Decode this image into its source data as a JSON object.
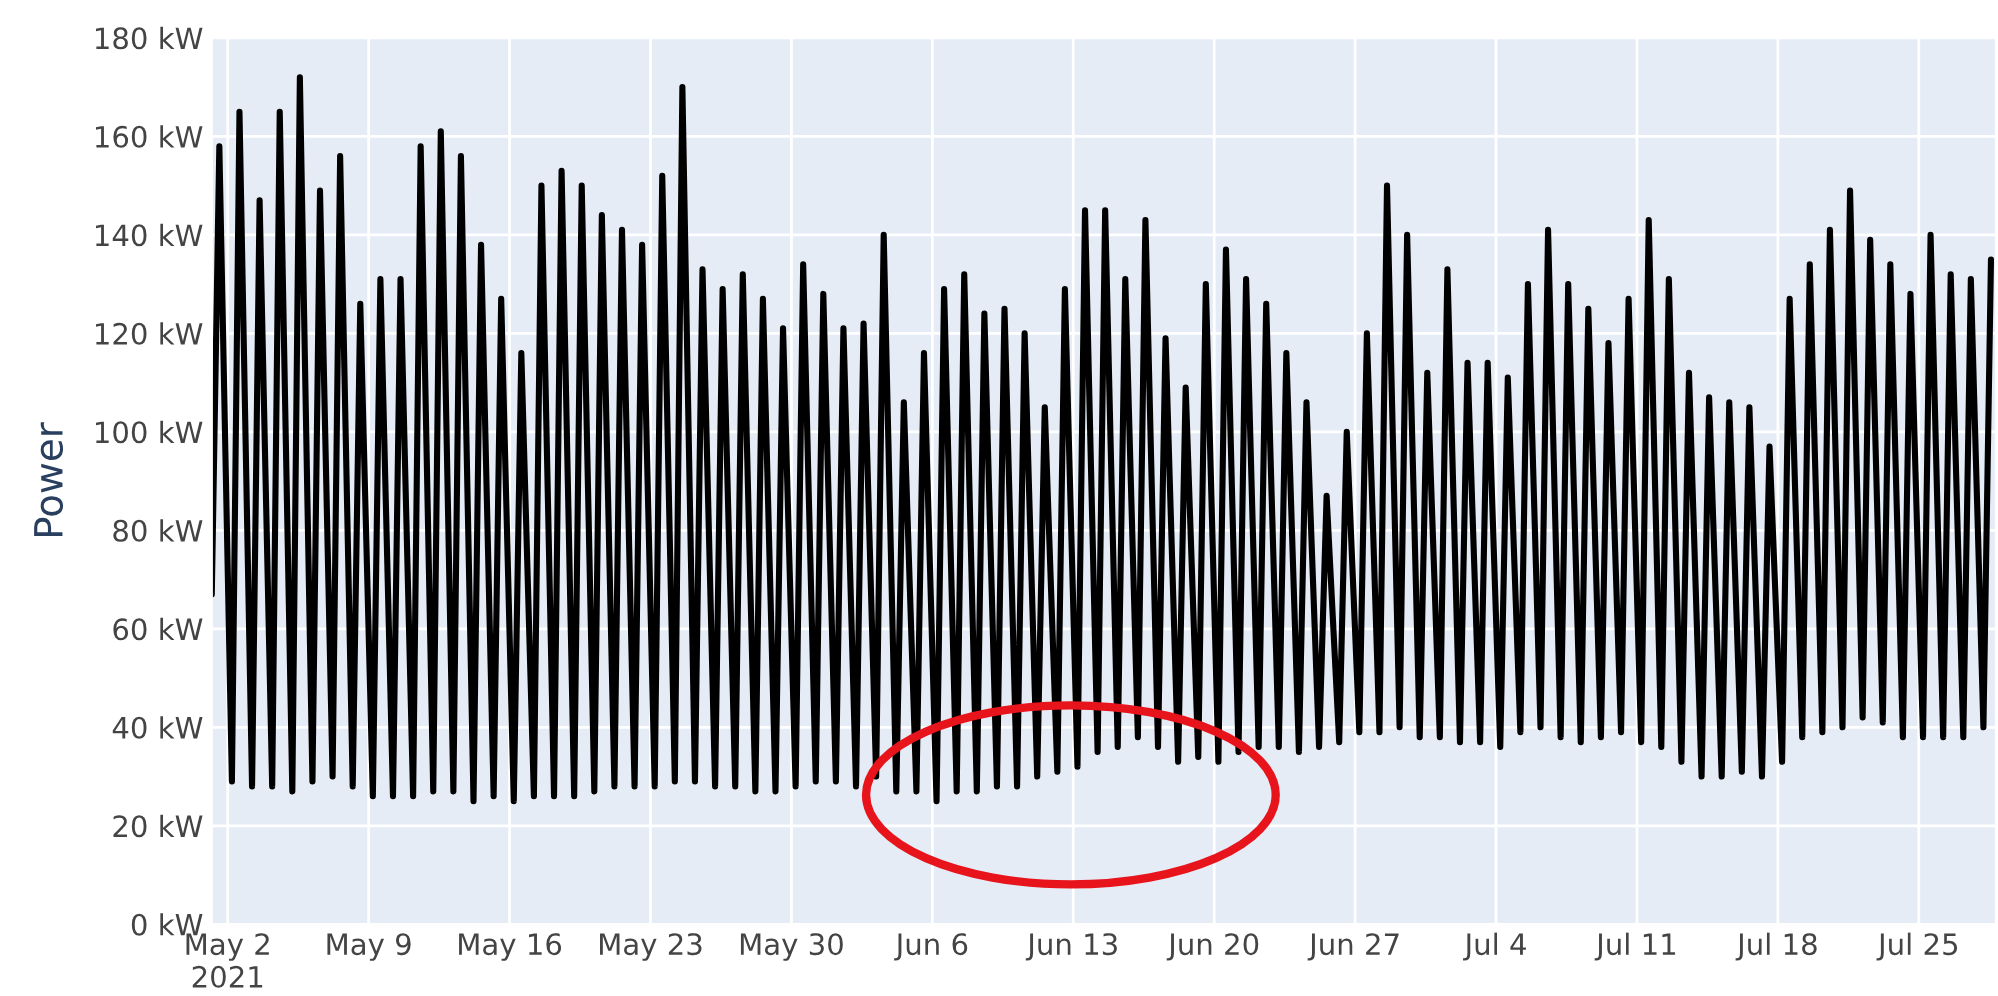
{
  "chart_data": {
    "type": "line",
    "ylabel": "Power",
    "x": [
      "2021-05-01T05:00",
      "2021-05-01T14:00",
      "2021-05-02T05:00",
      "2021-05-02T14:00",
      "2021-05-03T05:00",
      "2021-05-03T14:00",
      "2021-05-04T05:00",
      "2021-05-04T14:00",
      "2021-05-05T05:00",
      "2021-05-05T14:00",
      "2021-05-06T05:00",
      "2021-05-06T14:00",
      "2021-05-07T05:00",
      "2021-05-07T14:00",
      "2021-05-08T05:00",
      "2021-05-08T14:00",
      "2021-05-09T05:00",
      "2021-05-09T14:00",
      "2021-05-10T05:00",
      "2021-05-10T14:00",
      "2021-05-11T05:00",
      "2021-05-11T14:00",
      "2021-05-12T05:00",
      "2021-05-12T14:00",
      "2021-05-13T05:00",
      "2021-05-13T14:00",
      "2021-05-14T05:00",
      "2021-05-14T14:00",
      "2021-05-15T05:00",
      "2021-05-15T14:00",
      "2021-05-16T05:00",
      "2021-05-16T14:00",
      "2021-05-17T05:00",
      "2021-05-17T14:00",
      "2021-05-18T05:00",
      "2021-05-18T14:00",
      "2021-05-19T05:00",
      "2021-05-19T14:00",
      "2021-05-20T05:00",
      "2021-05-20T14:00",
      "2021-05-21T05:00",
      "2021-05-21T14:00",
      "2021-05-22T05:00",
      "2021-05-22T14:00",
      "2021-05-23T05:00",
      "2021-05-23T14:00",
      "2021-05-24T05:00",
      "2021-05-24T14:00",
      "2021-05-25T05:00",
      "2021-05-25T14:00",
      "2021-05-26T05:00",
      "2021-05-26T14:00",
      "2021-05-27T05:00",
      "2021-05-27T14:00",
      "2021-05-28T05:00",
      "2021-05-28T14:00",
      "2021-05-29T05:00",
      "2021-05-29T14:00",
      "2021-05-30T05:00",
      "2021-05-30T14:00",
      "2021-05-31T05:00",
      "2021-05-31T14:00",
      "2021-06-01T05:00",
      "2021-06-01T14:00",
      "2021-06-02T05:00",
      "2021-06-02T14:00",
      "2021-06-03T05:00",
      "2021-06-03T14:00",
      "2021-06-04T05:00",
      "2021-06-04T14:00",
      "2021-06-05T05:00",
      "2021-06-05T14:00",
      "2021-06-06T05:00",
      "2021-06-06T14:00",
      "2021-06-07T05:00",
      "2021-06-07T14:00",
      "2021-06-08T05:00",
      "2021-06-08T14:00",
      "2021-06-09T05:00",
      "2021-06-09T14:00",
      "2021-06-10T05:00",
      "2021-06-10T14:00",
      "2021-06-11T05:00",
      "2021-06-11T14:00",
      "2021-06-12T05:00",
      "2021-06-12T14:00",
      "2021-06-13T05:00",
      "2021-06-13T14:00",
      "2021-06-14T05:00",
      "2021-06-14T14:00",
      "2021-06-15T05:00",
      "2021-06-15T14:00",
      "2021-06-16T05:00",
      "2021-06-16T14:00",
      "2021-06-17T05:00",
      "2021-06-17T14:00",
      "2021-06-18T05:00",
      "2021-06-18T14:00",
      "2021-06-19T05:00",
      "2021-06-19T14:00",
      "2021-06-20T05:00",
      "2021-06-20T14:00",
      "2021-06-21T05:00",
      "2021-06-21T14:00",
      "2021-06-22T05:00",
      "2021-06-22T14:00",
      "2021-06-23T05:00",
      "2021-06-23T14:00",
      "2021-06-24T05:00",
      "2021-06-24T14:00",
      "2021-06-25T05:00",
      "2021-06-25T14:00",
      "2021-06-26T05:00",
      "2021-06-26T14:00",
      "2021-06-27T05:00",
      "2021-06-27T14:00",
      "2021-06-28T05:00",
      "2021-06-28T14:00",
      "2021-06-29T05:00",
      "2021-06-29T14:00",
      "2021-06-30T05:00",
      "2021-06-30T14:00",
      "2021-07-01T05:00",
      "2021-07-01T14:00",
      "2021-07-02T05:00",
      "2021-07-02T14:00",
      "2021-07-03T05:00",
      "2021-07-03T14:00",
      "2021-07-04T05:00",
      "2021-07-04T14:00",
      "2021-07-05T05:00",
      "2021-07-05T14:00",
      "2021-07-06T05:00",
      "2021-07-06T14:00",
      "2021-07-07T05:00",
      "2021-07-07T14:00",
      "2021-07-08T05:00",
      "2021-07-08T14:00",
      "2021-07-09T05:00",
      "2021-07-09T14:00",
      "2021-07-10T05:00",
      "2021-07-10T14:00",
      "2021-07-11T05:00",
      "2021-07-11T14:00",
      "2021-07-12T05:00",
      "2021-07-12T14:00",
      "2021-07-13T05:00",
      "2021-07-13T14:00",
      "2021-07-14T05:00",
      "2021-07-14T14:00",
      "2021-07-15T05:00",
      "2021-07-15T14:00",
      "2021-07-16T05:00",
      "2021-07-16T14:00",
      "2021-07-17T05:00",
      "2021-07-17T14:00",
      "2021-07-18T05:00",
      "2021-07-18T14:00",
      "2021-07-19T05:00",
      "2021-07-19T14:00",
      "2021-07-20T05:00",
      "2021-07-20T14:00",
      "2021-07-21T05:00",
      "2021-07-21T14:00",
      "2021-07-22T05:00",
      "2021-07-22T14:00",
      "2021-07-23T05:00",
      "2021-07-23T14:00",
      "2021-07-24T05:00",
      "2021-07-24T14:00",
      "2021-07-25T05:00",
      "2021-07-25T14:00",
      "2021-07-26T05:00",
      "2021-07-26T14:00",
      "2021-07-27T05:00",
      "2021-07-27T14:00",
      "2021-07-28T05:00",
      "2021-07-28T14:00"
    ],
    "series": [
      {
        "color": "#000000",
        "values": [
          67,
          158,
          29,
          165,
          28,
          147,
          28,
          165,
          27,
          172,
          29,
          149,
          30,
          156,
          28,
          126,
          26,
          131,
          26,
          131,
          26,
          158,
          27,
          161,
          27,
          156,
          25,
          138,
          26,
          127,
          25,
          116,
          26,
          150,
          26,
          153,
          26,
          150,
          27,
          144,
          28,
          141,
          28,
          138,
          28,
          152,
          29,
          170,
          29,
          133,
          28,
          129,
          28,
          132,
          27,
          127,
          27,
          121,
          28,
          134,
          29,
          128,
          29,
          121,
          28,
          122,
          30,
          140,
          27,
          106,
          27,
          116,
          25,
          129,
          27,
          132,
          27,
          124,
          28,
          125,
          28,
          120,
          30,
          105,
          31,
          129,
          32,
          145,
          35,
          145,
          36,
          131,
          38,
          143,
          36,
          119,
          33,
          109,
          34,
          130,
          33,
          137,
          35,
          131,
          36,
          126,
          36,
          116,
          35,
          106,
          36,
          87,
          37,
          100,
          39,
          120,
          39,
          150,
          40,
          140,
          38,
          112,
          38,
          133,
          37,
          114,
          37,
          114,
          36,
          111,
          39,
          130,
          40,
          141,
          38,
          130,
          37,
          125,
          38,
          118,
          39,
          127,
          37,
          143,
          36,
          131,
          33,
          112,
          30,
          107,
          30,
          106,
          31,
          105,
          30,
          97,
          33,
          127,
          38,
          134,
          39,
          141,
          40,
          149,
          42,
          139,
          41,
          134,
          38,
          128,
          38,
          140,
          38,
          132,
          38,
          131,
          40,
          135
        ]
      }
    ],
    "xlim": [
      "2021-05-01T05:00",
      "2021-07-28T20:00"
    ],
    "xticks": [
      {
        "value": "2021-05-02",
        "label": "May 2\n2021"
      },
      {
        "value": "2021-05-09",
        "label": "May 9"
      },
      {
        "value": "2021-05-16",
        "label": "May 16"
      },
      {
        "value": "2021-05-23",
        "label": "May 23"
      },
      {
        "value": "2021-05-30",
        "label": "May 30"
      },
      {
        "value": "2021-06-06",
        "label": "Jun 6"
      },
      {
        "value": "2021-06-13",
        "label": "Jun 13"
      },
      {
        "value": "2021-06-20",
        "label": "Jun 20"
      },
      {
        "value": "2021-06-27",
        "label": "Jun 27"
      },
      {
        "value": "2021-07-04",
        "label": "Jul 4"
      },
      {
        "value": "2021-07-11",
        "label": "Jul 11"
      },
      {
        "value": "2021-07-18",
        "label": "Jul 18"
      },
      {
        "value": "2021-07-25",
        "label": "Jul 25"
      }
    ],
    "ylim": [
      0,
      180
    ],
    "yticks": [
      {
        "value": 0,
        "label": "0 kW"
      },
      {
        "value": 20,
        "label": "20 kW"
      },
      {
        "value": 40,
        "label": "40 kW"
      },
      {
        "value": 60,
        "label": "60 kW"
      },
      {
        "value": 80,
        "label": "80 kW"
      },
      {
        "value": 100,
        "label": "100 kW"
      },
      {
        "value": 120,
        "label": "120 kW"
      },
      {
        "value": 140,
        "label": "140 kW"
      },
      {
        "value": 160,
        "label": "160 kW"
      },
      {
        "value": 180,
        "label": "180 kW"
      }
    ],
    "grid": true
  }
}
